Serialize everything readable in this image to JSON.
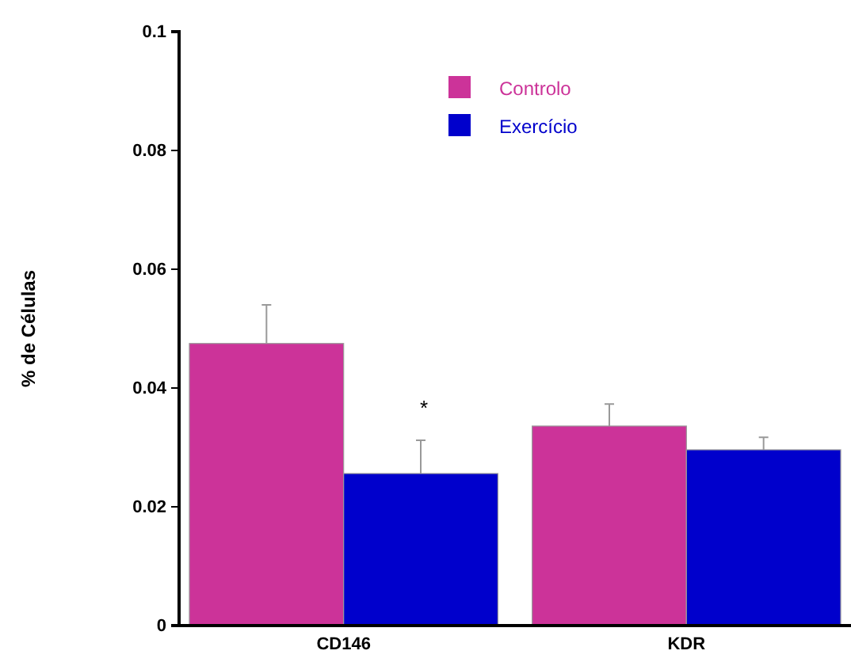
{
  "chart_data": {
    "type": "bar",
    "ylabel": "% de Células",
    "categories": [
      "CD146",
      "KDR"
    ],
    "series": [
      {
        "name": "Controlo",
        "color": "#cc3399",
        "values": [
          0.0475,
          0.0336
        ],
        "errors": [
          [
            0.0475,
            0.054
          ],
          [
            0.0336,
            0.0373
          ]
        ]
      },
      {
        "name": "Exercício",
        "color": "#0000cc",
        "values": [
          0.0256,
          0.0296
        ],
        "errors": [
          [
            0.0256,
            0.0312
          ],
          [
            0.0296,
            0.0317
          ]
        ]
      }
    ],
    "ylim": [
      0,
      0.1
    ],
    "yticks": [
      0,
      0.02,
      0.04,
      0.06,
      0.08,
      0.1
    ],
    "annotations": [
      "*"
    ],
    "grid": false,
    "legend": "top right"
  }
}
